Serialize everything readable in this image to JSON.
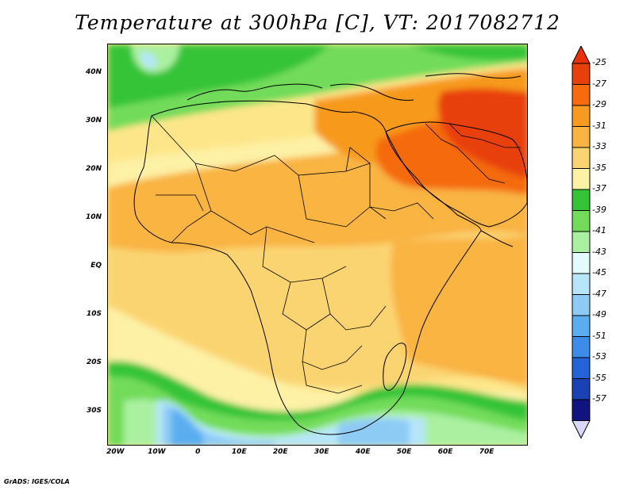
{
  "title": "Temperature at 300hPa [C], VT: 2017082712",
  "credit": "GrADS: IGES/COLA",
  "map": {
    "lon_range": [
      -22,
      80
    ],
    "lat_range": [
      -37,
      46
    ],
    "lat_ticks": [
      {
        "value": 40,
        "label": "40N"
      },
      {
        "value": 30,
        "label": "30N"
      },
      {
        "value": 20,
        "label": "20N"
      },
      {
        "value": 10,
        "label": "10N"
      },
      {
        "value": 0,
        "label": "EQ"
      },
      {
        "value": -10,
        "label": "10S"
      },
      {
        "value": -20,
        "label": "20S"
      },
      {
        "value": -30,
        "label": "30S"
      }
    ],
    "lon_ticks": [
      {
        "value": -20,
        "label": "20W"
      },
      {
        "value": -10,
        "label": "10W"
      },
      {
        "value": 0,
        "label": "0"
      },
      {
        "value": 10,
        "label": "10E"
      },
      {
        "value": 20,
        "label": "20E"
      },
      {
        "value": 30,
        "label": "30E"
      },
      {
        "value": 40,
        "label": "40E"
      },
      {
        "value": 50,
        "label": "50E"
      },
      {
        "value": 60,
        "label": "60E"
      },
      {
        "value": 70,
        "label": "70E"
      }
    ]
  },
  "colorbar": {
    "labels": [
      "-25",
      "-27",
      "-29",
      "-31",
      "-33",
      "-35",
      "-37",
      "-39",
      "-41",
      "-43",
      "-45",
      "-47",
      "-49",
      "-51",
      "-53",
      "-55",
      "-57"
    ],
    "colors": [
      "#e8400b",
      "#f56b0e",
      "#f79a1f",
      "#f9b443",
      "#fbd472",
      "#fdf1a6",
      "#36c437",
      "#72dc5a",
      "#aaf0a0",
      "#e4fbfb",
      "#b6e6f8",
      "#8dcbf5",
      "#5aaef0",
      "#3c8ce8",
      "#2464d8",
      "#1a42b5",
      "#101480"
    ],
    "top_triangle_color": "#e8300b",
    "bottom_triangle_color": "#d8d8f8"
  }
}
